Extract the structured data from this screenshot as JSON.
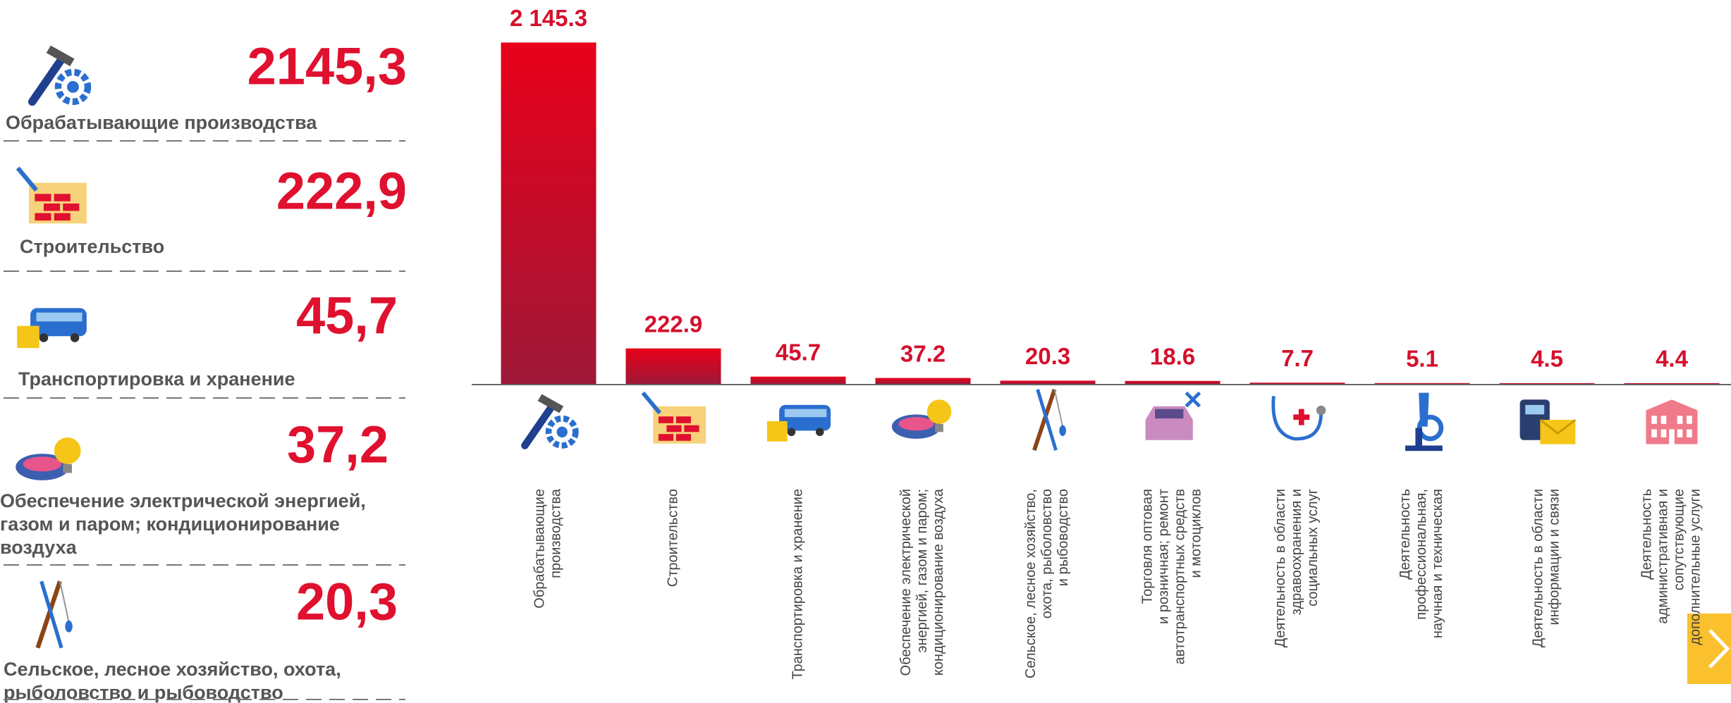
{
  "panel": {
    "items": [
      {
        "value": "2145,3",
        "label": "Обрабатывающие производства"
      },
      {
        "value": "222,9",
        "label": "Строительство"
      },
      {
        "value": "45,7",
        "label": "Транспортировка и хранение"
      },
      {
        "value": "37,2",
        "label": "Обеспечение электрической энергией,\nгазом и паром; кондиционирование\nвоздуха"
      },
      {
        "value": "20,3",
        "label": "Сельское, лесное хозяйство, охота,\nрыболовство и рыбоводство"
      }
    ]
  },
  "chart_data": {
    "type": "bar",
    "categories": [
      "Обрабатывающие\nпроизводства",
      "Строительство",
      "Транспортировка и хранение",
      "Обеспечение электрической\nэнергией, газом и паром;\nкондиционирование воздуха",
      "Сельское, лесное хозяйство,\nохота, рыболовство\nи  рыбоводство",
      "Торговля оптовая\nи розничная; ремонт\nавтотранспортных средств\nи мотоциклов",
      "Деятельность в области\nздравоохранения и\nсоциальных услуг",
      "Деятельность\nпрофессиональная,\nнаучная и техническая",
      "Деятельность в области\nинформации и связи",
      "Деятельность\nадминистративная и\nсопутствующие\nдополнительные услуги"
    ],
    "values": [
      2145.3,
      222.9,
      45.7,
      37.2,
      20.3,
      18.6,
      7.7,
      5.1,
      4.5,
      4.4
    ],
    "value_labels": [
      "2 145.3",
      "222.9",
      "45.7",
      "37.2",
      "20.3",
      "18.6",
      "7.7",
      "5.1",
      "4.5",
      "4.4"
    ],
    "color": "#d9001f",
    "ylim": [
      0,
      2200
    ]
  }
}
